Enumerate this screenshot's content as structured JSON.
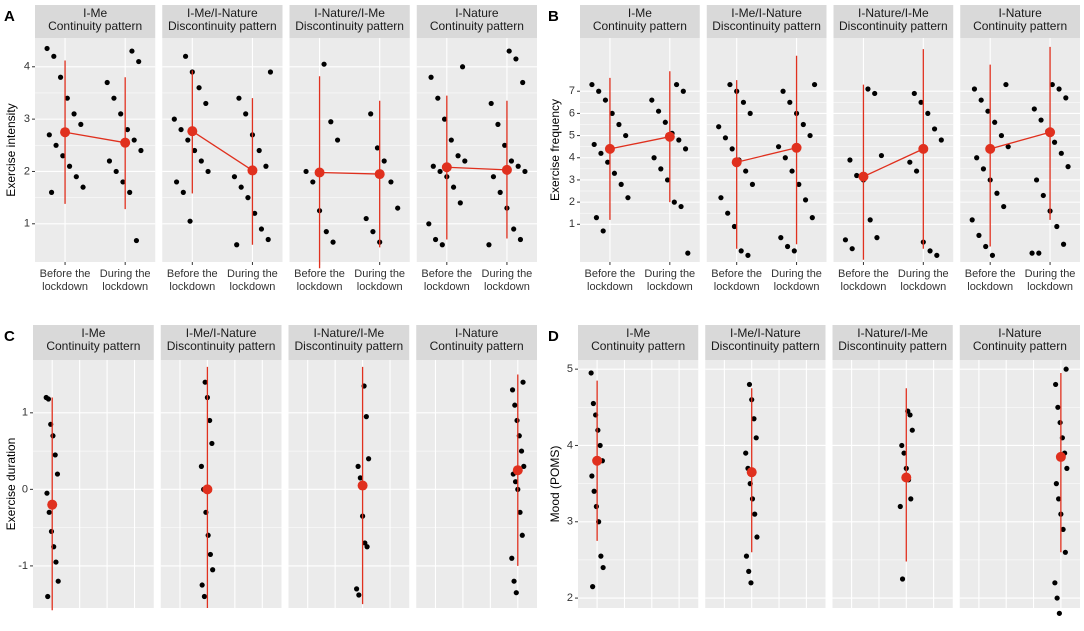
{
  "chart_data": [
    {
      "type": "dotplot",
      "panel": "A",
      "y_label": "Exercise intensity",
      "ylim": [
        0.27,
        4.55
      ],
      "yticks": [
        1,
        2,
        3,
        4
      ],
      "color": "#e0301e",
      "point_color": "#000000",
      "categories": [
        [
          "Before the",
          "lockdown"
        ],
        [
          "During the",
          "lockdown"
        ]
      ],
      "facets": [
        {
          "title": [
            "I-Me",
            "Continuity pattern"
          ],
          "groups": [
            {
              "mean": 2.75,
              "low": 1.38,
              "high": 4.12,
              "points": [
                4.35,
                4.2,
                3.8,
                3.4,
                3.1,
                2.9,
                2.7,
                2.5,
                2.3,
                2.1,
                1.9,
                1.7,
                1.6
              ]
            },
            {
              "mean": 2.55,
              "low": 1.28,
              "high": 3.8,
              "points": [
                4.3,
                4.1,
                3.7,
                3.4,
                3.1,
                2.8,
                2.6,
                2.4,
                2.2,
                2.0,
                1.8,
                1.6,
                0.68
              ]
            }
          ]
        },
        {
          "title": [
            "I-Me/I-Nature",
            "Discontinuity pattern"
          ],
          "groups": [
            {
              "mean": 2.77,
              "low": 1.58,
              "high": 3.93,
              "points": [
                4.2,
                3.9,
                3.6,
                3.3,
                3.0,
                2.8,
                2.6,
                2.4,
                2.2,
                2.0,
                1.8,
                1.6,
                1.05
              ]
            },
            {
              "mean": 2.02,
              "low": 0.6,
              "high": 3.4,
              "points": [
                3.9,
                3.4,
                3.1,
                2.7,
                2.4,
                2.1,
                1.9,
                1.7,
                1.5,
                1.2,
                0.9,
                0.7,
                0.6
              ]
            }
          ]
        },
        {
          "title": [
            "I-Nature/I-Me",
            "Discontinuity pattern"
          ],
          "groups": [
            {
              "mean": 1.98,
              "low": 0.15,
              "high": 3.82,
              "points": [
                4.05,
                2.95,
                2.6,
                2.0,
                1.8,
                1.25,
                0.85,
                0.65
              ]
            },
            {
              "mean": 1.95,
              "low": 0.55,
              "high": 3.35,
              "points": [
                3.1,
                2.45,
                2.2,
                1.8,
                1.3,
                1.1,
                0.85,
                0.65
              ]
            }
          ]
        },
        {
          "title": [
            "I-Nature",
            "Continuity pattern"
          ],
          "groups": [
            {
              "mean": 2.08,
              "low": 0.7,
              "high": 3.45,
              "points": [
                4.0,
                3.8,
                3.4,
                3.0,
                2.6,
                2.3,
                2.2,
                2.1,
                2.0,
                1.9,
                1.7,
                1.4,
                1.0,
                0.7,
                0.6
              ]
            },
            {
              "mean": 2.03,
              "low": 0.72,
              "high": 3.35,
              "points": [
                4.3,
                4.15,
                3.7,
                3.3,
                2.9,
                2.5,
                2.2,
                2.1,
                2.0,
                1.9,
                1.6,
                1.3,
                0.9,
                0.7,
                0.6
              ]
            }
          ]
        }
      ]
    },
    {
      "type": "dotplot",
      "panel": "B",
      "y_label": "Exercise frequency",
      "ylim": [
        -0.7,
        9.4
      ],
      "yticks": [
        1,
        2,
        3,
        4,
        5,
        6,
        7
      ],
      "color": "#e0301e",
      "point_color": "#000000",
      "categories": [
        [
          "Before the",
          "lockdown"
        ],
        [
          "During the",
          "lockdown"
        ]
      ],
      "facets": [
        {
          "title": [
            "I-Me",
            "Continuity pattern"
          ],
          "groups": [
            {
              "mean": 4.4,
              "low": 1.2,
              "high": 7.6,
              "points": [
                7.3,
                7.0,
                6.6,
                6.0,
                5.5,
                5.0,
                4.6,
                4.2,
                3.8,
                3.3,
                2.8,
                2.2,
                1.3,
                0.7
              ]
            },
            {
              "mean": 4.95,
              "low": 2.0,
              "high": 7.9,
              "points": [
                7.3,
                7.0,
                6.6,
                6.1,
                5.6,
                5.1,
                4.8,
                4.4,
                4.0,
                3.5,
                3.0,
                2.0,
                1.8,
                -0.3
              ]
            }
          ]
        },
        {
          "title": [
            "I-Me/I-Nature",
            "Discontinuity pattern"
          ],
          "groups": [
            {
              "mean": 3.8,
              "low": -0.1,
              "high": 7.5,
              "points": [
                7.3,
                7.0,
                6.5,
                6.0,
                5.4,
                4.9,
                4.4,
                3.9,
                3.4,
                2.8,
                2.2,
                1.5,
                0.9,
                -0.2,
                -0.4
              ]
            },
            {
              "mean": 4.45,
              "low": 0.1,
              "high": 8.6,
              "points": [
                7.3,
                7.0,
                6.5,
                6.0,
                5.5,
                5.0,
                4.5,
                4.0,
                3.4,
                2.8,
                2.1,
                1.3,
                0.4,
                0.0,
                -0.2
              ]
            }
          ]
        },
        {
          "title": [
            "I-Nature/I-Me",
            "Discontinuity pattern"
          ],
          "groups": [
            {
              "mean": 3.15,
              "low": -0.6,
              "high": 7.3,
              "points": [
                7.1,
                6.9,
                4.1,
                3.9,
                3.2,
                3.0,
                1.2,
                0.4,
                0.3,
                -0.1
              ]
            },
            {
              "mean": 4.4,
              "low": -0.1,
              "high": 8.9,
              "points": [
                6.9,
                6.5,
                6.0,
                5.3,
                4.8,
                3.8,
                3.4,
                0.2,
                -0.2,
                -0.4
              ]
            }
          ]
        },
        {
          "title": [
            "I-Nature",
            "Continuity pattern"
          ],
          "groups": [
            {
              "mean": 4.4,
              "low": 0.0,
              "high": 8.2,
              "points": [
                7.3,
                7.1,
                6.6,
                6.1,
                5.6,
                5.0,
                4.5,
                4.0,
                3.5,
                3.0,
                2.4,
                1.8,
                1.2,
                0.5,
                0.0,
                -0.4
              ]
            },
            {
              "mean": 5.15,
              "low": 1.2,
              "high": 9.0,
              "points": [
                7.3,
                7.1,
                6.7,
                6.2,
                5.7,
                5.2,
                4.7,
                4.2,
                3.6,
                3.0,
                2.3,
                1.6,
                0.9,
                0.1,
                -0.3,
                -0.3
              ]
            }
          ]
        }
      ]
    },
    {
      "type": "dotplot",
      "panel": "C",
      "y_label": "Exercise duration",
      "ylim": [
        -1.55,
        1.69
      ],
      "yticks": [
        -1,
        0,
        1
      ],
      "color": "#e0301e",
      "point_color": "#000000",
      "facets": [
        {
          "title": [
            "I-Me",
            "Continuity pattern"
          ],
          "groups": [
            {
              "mean": -0.2,
              "low": -1.58,
              "high": 1.2,
              "points": [
                1.2,
                1.18,
                0.85,
                0.7,
                0.45,
                0.2,
                -0.05,
                -0.3,
                -0.55,
                -0.75,
                -0.95,
                -1.2,
                -1.4
              ]
            }
          ]
        },
        {
          "title": [
            "I-Me/I-Nature",
            "Discontinuity pattern"
          ],
          "groups": [
            {
              "mean": 0.0,
              "low": -1.55,
              "high": 1.6,
              "points": [
                1.4,
                1.2,
                0.9,
                0.6,
                0.3,
                0.0,
                -0.3,
                -0.6,
                -0.85,
                -1.05,
                -1.25,
                -1.4
              ]
            }
          ]
        },
        {
          "title": [
            "I-Nature/I-Me",
            "Discontinuity pattern"
          ],
          "groups": [
            {
              "mean": 0.05,
              "low": -1.5,
              "high": 1.6,
              "points": [
                1.35,
                0.95,
                0.4,
                0.3,
                0.15,
                -0.35,
                -0.7,
                -0.75,
                -1.3,
                -1.38
              ]
            }
          ]
        },
        {
          "title": [
            "I-Nature",
            "Continuity pattern"
          ],
          "groups": [
            {
              "mean": 0.25,
              "low": -1.0,
              "high": 1.5,
              "points": [
                1.4,
                1.3,
                1.1,
                0.9,
                0.7,
                0.5,
                0.3,
                0.2,
                0.1,
                0.0,
                -0.3,
                -0.6,
                -0.9,
                -1.2,
                -1.35
              ]
            }
          ]
        }
      ]
    },
    {
      "type": "dotplot",
      "panel": "D",
      "y_label": "Mood (POMS)",
      "ylim": [
        1.87,
        5.12
      ],
      "yticks": [
        2,
        3,
        4,
        5
      ],
      "color": "#e0301e",
      "point_color": "#000000",
      "facets": [
        {
          "title": [
            "I-Me",
            "Continuity pattern"
          ],
          "groups": [
            {
              "mean": 3.8,
              "low": 2.75,
              "high": 4.85,
              "points": [
                4.95,
                4.55,
                4.4,
                4.2,
                4.0,
                3.8,
                3.6,
                3.4,
                3.2,
                3.0,
                2.55,
                2.4,
                2.15
              ]
            }
          ]
        },
        {
          "title": [
            "I-Me/I-Nature",
            "Discontinuity pattern"
          ],
          "groups": [
            {
              "mean": 3.65,
              "low": 2.6,
              "high": 4.75,
              "points": [
                4.8,
                4.6,
                4.35,
                4.1,
                3.9,
                3.7,
                3.5,
                3.3,
                3.1,
                2.8,
                2.55,
                2.35,
                2.2
              ]
            }
          ]
        },
        {
          "title": [
            "I-Nature/I-Me",
            "Discontinuity pattern"
          ],
          "groups": [
            {
              "mean": 3.58,
              "low": 2.48,
              "high": 4.75,
              "points": [
                4.45,
                4.4,
                4.2,
                4.0,
                3.9,
                3.7,
                3.55,
                3.3,
                3.2,
                2.25
              ]
            }
          ]
        },
        {
          "title": [
            "I-Nature",
            "Continuity pattern"
          ],
          "groups": [
            {
              "mean": 3.85,
              "low": 2.6,
              "high": 4.95,
              "points": [
                5.0,
                4.8,
                4.5,
                4.3,
                4.1,
                3.9,
                3.7,
                3.5,
                3.3,
                3.1,
                2.9,
                2.6,
                2.2,
                2.0,
                1.8
              ]
            }
          ]
        }
      ]
    }
  ]
}
